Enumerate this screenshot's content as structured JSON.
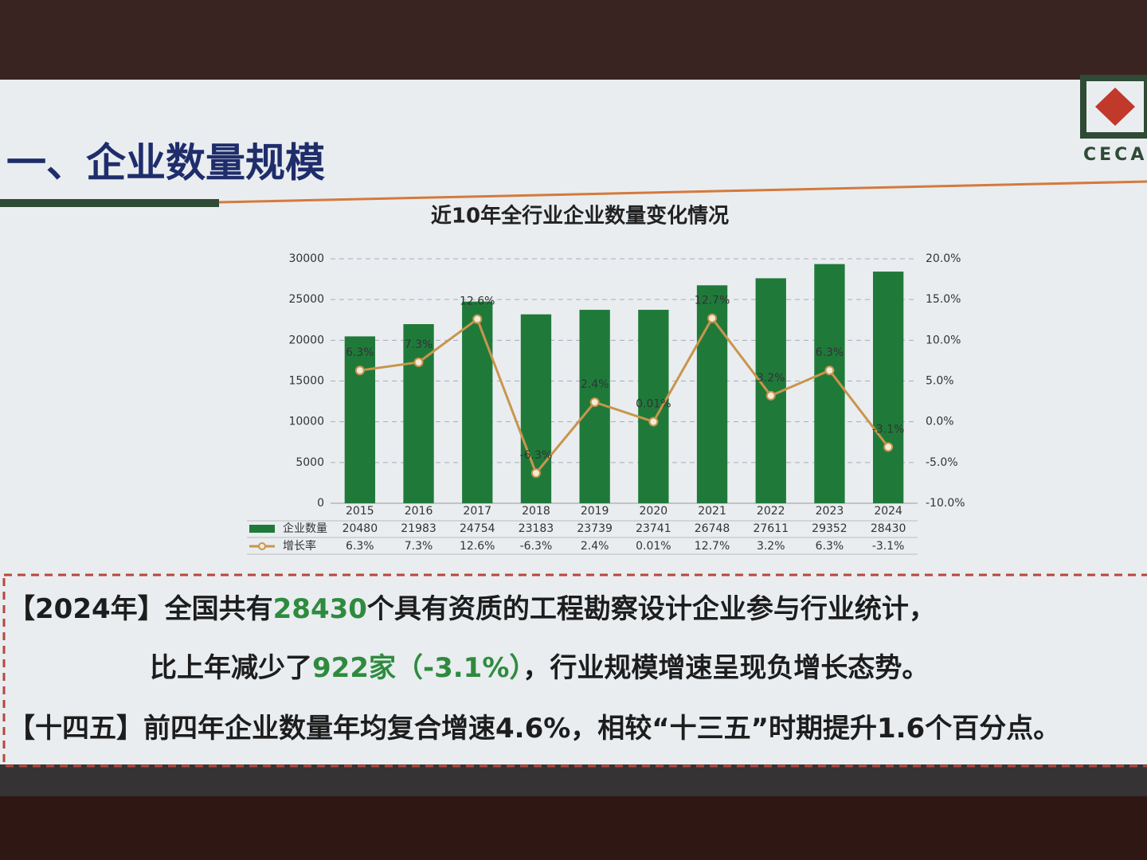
{
  "slide": {
    "heading": "一、企业数量规模",
    "logo": "CECA",
    "notes": [
      [
        {
          "text": "【2024年】全国共有"
        },
        {
          "text": "28430",
          "color": "#2e8b3e"
        },
        {
          "text": "个具有资质的工程勘察设计企业参与行业统计，"
        }
      ],
      [
        {
          "text": "比上年减少了"
        },
        {
          "text": "922家（-3.1%）",
          "color": "#2e8b3e"
        },
        {
          "text": "，行业规模增速呈现负增长态势。"
        }
      ],
      [
        {
          "text": "【十四五】前四年企业数量年均复合增速4.6%，相较“十三五”时期提升1.6个百分点。"
        }
      ]
    ]
  },
  "chart_data": {
    "type": "bar",
    "title": "近10年全行业企业数量变化情况",
    "categories": [
      "2015",
      "2016",
      "2017",
      "2018",
      "2019",
      "2020",
      "2021",
      "2022",
      "2023",
      "2024"
    ],
    "series": [
      {
        "name": "企业数量",
        "color": "#1f7a3a",
        "values": [
          20480,
          21983,
          24754,
          23183,
          23739,
          23741,
          26748,
          27611,
          29352,
          28430
        ]
      },
      {
        "name": "增长率",
        "color": "#c9954c",
        "type": "line",
        "axis": "y2",
        "values": [
          6.3,
          7.3,
          12.6,
          -6.3,
          2.4,
          0.01,
          12.7,
          3.2,
          6.3,
          -3.1
        ],
        "value_labels": [
          "6.3%",
          "7.3%",
          "12.6%",
          "-6.3%",
          "2.4%",
          "0.01%",
          "12.7%",
          "3.2%",
          "6.3%",
          "-3.1%"
        ]
      }
    ],
    "ylim": [
      0,
      30000
    ],
    "yticks": [
      0,
      5000,
      10000,
      15000,
      20000,
      25000,
      30000
    ],
    "y2lim": [
      -10,
      20
    ],
    "y2ticks": [
      {
        "value": -10,
        "label": "-10.0%"
      },
      {
        "value": -5,
        "label": "-5.0%"
      },
      {
        "value": 0,
        "label": "0.0%"
      },
      {
        "value": 5,
        "label": "5.0%"
      },
      {
        "value": 10,
        "label": "10.0%"
      },
      {
        "value": 15,
        "label": "15.0%"
      },
      {
        "value": 20,
        "label": "20.0%"
      }
    ],
    "grid": true,
    "data_table": true
  }
}
